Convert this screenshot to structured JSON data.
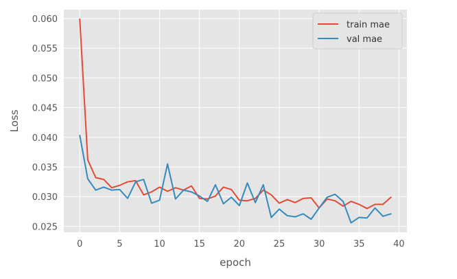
{
  "chart_data": {
    "type": "line",
    "title": "",
    "xlabel": "epoch",
    "ylabel": "Loss",
    "xlim": [
      -2,
      41
    ],
    "ylim": [
      0.024,
      0.0615
    ],
    "xticks": [
      0,
      5,
      10,
      15,
      20,
      25,
      30,
      35,
      40
    ],
    "yticks": [
      0.025,
      0.03,
      0.035,
      0.04,
      0.045,
      0.05,
      0.055,
      0.06
    ],
    "ytick_labels": [
      "0.025",
      "0.030",
      "0.035",
      "0.040",
      "0.045",
      "0.050",
      "0.055",
      "0.060"
    ],
    "grid": true,
    "legend_position": "top-right",
    "x": [
      0,
      1,
      2,
      3,
      4,
      5,
      6,
      7,
      8,
      9,
      10,
      11,
      12,
      13,
      14,
      15,
      16,
      17,
      18,
      19,
      20,
      21,
      22,
      23,
      24,
      25,
      26,
      27,
      28,
      29,
      30,
      31,
      32,
      33,
      34,
      35,
      36,
      37,
      38,
      39
    ],
    "series": [
      {
        "name": "train mae",
        "color": "#E24A33",
        "values": [
          0.0599,
          0.0362,
          0.0332,
          0.0329,
          0.0315,
          0.0319,
          0.0325,
          0.0327,
          0.0303,
          0.0308,
          0.0316,
          0.0309,
          0.0315,
          0.0311,
          0.0318,
          0.0297,
          0.0296,
          0.0301,
          0.0316,
          0.0312,
          0.0294,
          0.0293,
          0.0297,
          0.0311,
          0.0303,
          0.0289,
          0.0295,
          0.029,
          0.0297,
          0.0298,
          0.0281,
          0.0296,
          0.0293,
          0.0284,
          0.0292,
          0.0287,
          0.028,
          0.0287,
          0.0287,
          0.0299
        ]
      },
      {
        "name": "val mae",
        "color": "#348ABD",
        "values": [
          0.0403,
          0.033,
          0.0311,
          0.0316,
          0.0311,
          0.0312,
          0.0297,
          0.0325,
          0.0329,
          0.0289,
          0.0294,
          0.0355,
          0.0296,
          0.0311,
          0.0308,
          0.0301,
          0.0292,
          0.032,
          0.0288,
          0.0299,
          0.0285,
          0.0323,
          0.029,
          0.032,
          0.0265,
          0.0279,
          0.0268,
          0.0266,
          0.0271,
          0.0262,
          0.0281,
          0.0299,
          0.0304,
          0.0292,
          0.0256,
          0.0265,
          0.0264,
          0.0281,
          0.0267,
          0.0271
        ]
      }
    ]
  }
}
